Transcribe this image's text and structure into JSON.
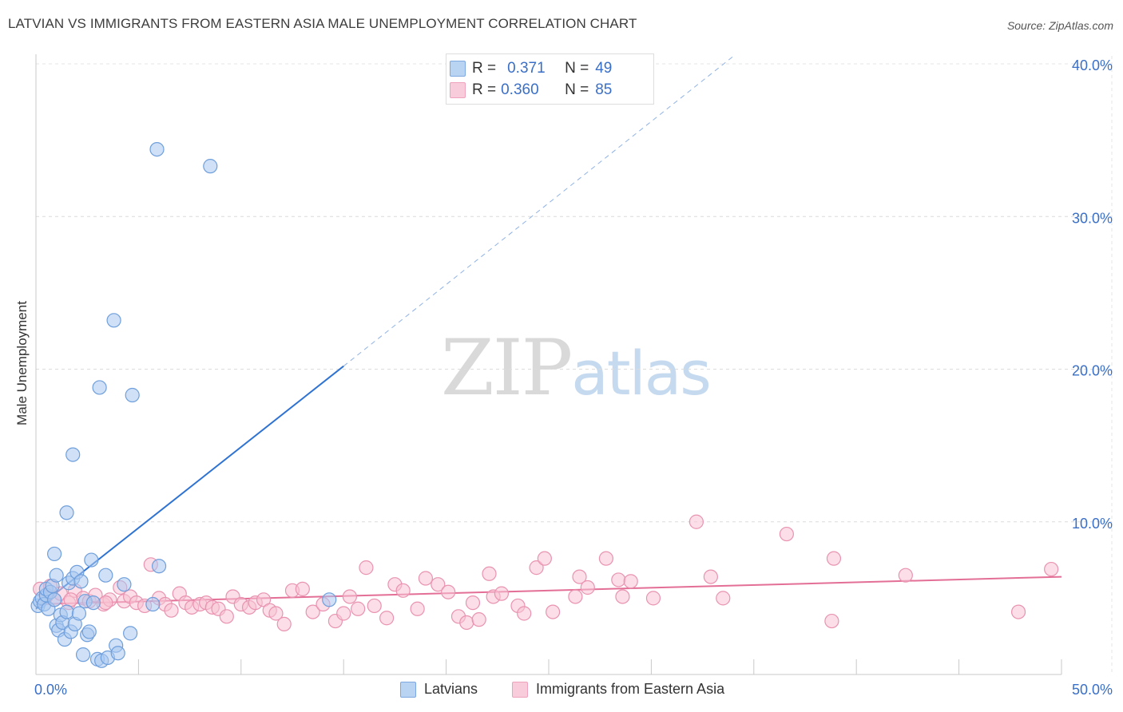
{
  "header": {
    "title": "LATVIAN VS IMMIGRANTS FROM EASTERN ASIA MALE UNEMPLOYMENT CORRELATION CHART",
    "source": "Source: ZipAtlas.com"
  },
  "watermark": {
    "zip": "ZIP",
    "atlas": "atlas"
  },
  "legend": {
    "latvians": {
      "r_label": "R =",
      "r_value": "0.371",
      "n_label": "N =",
      "n_value": "49"
    },
    "eastern_asia": {
      "r_label": "R =",
      "r_value": "0.360",
      "n_label": "N =",
      "n_value": "85"
    }
  },
  "bottom_legend": {
    "latvians": "Latvians",
    "eastern_asia": "Immigrants from Eastern Asia"
  },
  "colors": {
    "latvians_fill": "#a9c8f0",
    "latvians_stroke": "#6f9fdc",
    "latvians_line": "#2e72d2",
    "eastern_fill": "#f8c3d3",
    "eastern_stroke": "#e993b0",
    "eastern_line": "#e36f97",
    "tick_label": "#3a6fc7"
  },
  "chart_data": {
    "type": "scatter",
    "title": "LATVIAN VS IMMIGRANTS FROM EASTERN ASIA MALE UNEMPLOYMENT CORRELATION CHART",
    "xlabel": "",
    "ylabel": "Male Unemployment",
    "xlim": [
      0,
      50
    ],
    "ylim": [
      0,
      40
    ],
    "x_tick_labels": [
      {
        "value": 0,
        "label": "0.0%"
      },
      {
        "value": 50,
        "label": "50.0%"
      }
    ],
    "y_tick_labels": [
      {
        "value": 10,
        "label": "10.0%"
      },
      {
        "value": 20,
        "label": "20.0%"
      },
      {
        "value": 30,
        "label": "30.0%"
      },
      {
        "value": 40,
        "label": "40.0%"
      }
    ],
    "grid": true,
    "series": [
      {
        "name": "Latvians",
        "R": 0.371,
        "N": 49,
        "points": [
          [
            0.1,
            4.5
          ],
          [
            0.2,
            4.8
          ],
          [
            0.3,
            5.0
          ],
          [
            0.4,
            4.6
          ],
          [
            0.5,
            5.2
          ],
          [
            0.5,
            5.6
          ],
          [
            0.6,
            4.3
          ],
          [
            0.7,
            5.4
          ],
          [
            0.8,
            5.8
          ],
          [
            0.9,
            4.9
          ],
          [
            1.0,
            3.2
          ],
          [
            1.0,
            6.5
          ],
          [
            0.9,
            7.9
          ],
          [
            1.1,
            2.9
          ],
          [
            1.2,
            3.9
          ],
          [
            1.3,
            3.4
          ],
          [
            1.4,
            2.3
          ],
          [
            1.5,
            4.1
          ],
          [
            1.6,
            6.0
          ],
          [
            1.7,
            2.8
          ],
          [
            1.8,
            6.3
          ],
          [
            1.9,
            3.3
          ],
          [
            2.0,
            6.7
          ],
          [
            2.1,
            4.0
          ],
          [
            2.2,
            6.1
          ],
          [
            2.3,
            1.3
          ],
          [
            2.4,
            4.8
          ],
          [
            2.5,
            2.6
          ],
          [
            2.6,
            2.8
          ],
          [
            2.7,
            7.5
          ],
          [
            2.8,
            4.7
          ],
          [
            3.0,
            1.0
          ],
          [
            3.2,
            0.9
          ],
          [
            3.4,
            6.5
          ],
          [
            3.5,
            1.1
          ],
          [
            3.9,
            1.9
          ],
          [
            4.0,
            1.4
          ],
          [
            4.3,
            5.9
          ],
          [
            4.6,
            2.7
          ],
          [
            5.7,
            4.6
          ],
          [
            6.0,
            7.1
          ],
          [
            1.5,
            10.6
          ],
          [
            1.8,
            14.4
          ],
          [
            3.1,
            18.8
          ],
          [
            3.8,
            23.2
          ],
          [
            4.7,
            18.3
          ],
          [
            5.9,
            34.4
          ],
          [
            8.5,
            33.3
          ],
          [
            14.3,
            4.9
          ]
        ],
        "trend": {
          "x1": 0,
          "y1": 4.3,
          "x2": 15.0,
          "y2": 20.2,
          "dashed_to_x": 34.0,
          "dashed_to_y": 40.5
        }
      },
      {
        "name": "Immigrants from Eastern Asia",
        "R": 0.36,
        "N": 85,
        "points": [
          [
            0.2,
            5.6
          ],
          [
            0.5,
            5.1
          ],
          [
            0.7,
            5.8
          ],
          [
            0.9,
            4.9
          ],
          [
            1.2,
            5.3
          ],
          [
            1.6,
            4.7
          ],
          [
            1.9,
            5.5
          ],
          [
            2.3,
            5.0
          ],
          [
            2.6,
            4.8
          ],
          [
            2.9,
            5.2
          ],
          [
            3.3,
            4.6
          ],
          [
            3.6,
            4.9
          ],
          [
            4.1,
            5.7
          ],
          [
            4.3,
            4.8
          ],
          [
            4.6,
            5.1
          ],
          [
            4.9,
            4.7
          ],
          [
            5.3,
            4.5
          ],
          [
            5.6,
            7.2
          ],
          [
            6.0,
            5.0
          ],
          [
            6.3,
            4.6
          ],
          [
            6.6,
            4.2
          ],
          [
            7.0,
            5.3
          ],
          [
            7.3,
            4.7
          ],
          [
            7.6,
            4.4
          ],
          [
            8.0,
            4.6
          ],
          [
            8.3,
            4.7
          ],
          [
            8.6,
            4.4
          ],
          [
            8.9,
            4.3
          ],
          [
            9.3,
            3.8
          ],
          [
            9.6,
            5.1
          ],
          [
            10.0,
            4.6
          ],
          [
            10.4,
            4.4
          ],
          [
            10.7,
            4.7
          ],
          [
            11.1,
            4.9
          ],
          [
            11.4,
            4.2
          ],
          [
            11.7,
            4.0
          ],
          [
            12.1,
            3.3
          ],
          [
            12.5,
            5.5
          ],
          [
            13.0,
            5.6
          ],
          [
            13.5,
            4.1
          ],
          [
            14.0,
            4.6
          ],
          [
            14.6,
            3.5
          ],
          [
            15.0,
            4.0
          ],
          [
            15.3,
            5.1
          ],
          [
            15.7,
            4.3
          ],
          [
            16.1,
            7.0
          ],
          [
            16.5,
            4.5
          ],
          [
            17.1,
            3.7
          ],
          [
            17.5,
            5.9
          ],
          [
            17.9,
            5.5
          ],
          [
            18.6,
            4.3
          ],
          [
            19.0,
            6.3
          ],
          [
            19.6,
            5.9
          ],
          [
            20.1,
            5.4
          ],
          [
            20.6,
            3.8
          ],
          [
            21.0,
            3.4
          ],
          [
            21.3,
            4.7
          ],
          [
            21.6,
            3.6
          ],
          [
            22.1,
            6.6
          ],
          [
            22.3,
            5.1
          ],
          [
            22.7,
            5.3
          ],
          [
            23.5,
            4.5
          ],
          [
            23.8,
            4.0
          ],
          [
            24.4,
            7.0
          ],
          [
            24.8,
            7.6
          ],
          [
            25.2,
            4.1
          ],
          [
            26.3,
            5.1
          ],
          [
            26.5,
            6.4
          ],
          [
            26.9,
            5.7
          ],
          [
            27.8,
            7.6
          ],
          [
            28.4,
            6.2
          ],
          [
            28.6,
            5.1
          ],
          [
            29.0,
            6.1
          ],
          [
            30.1,
            5.0
          ],
          [
            32.2,
            10.0
          ],
          [
            32.9,
            6.4
          ],
          [
            33.5,
            5.0
          ],
          [
            36.6,
            9.2
          ],
          [
            38.8,
            3.5
          ],
          [
            38.9,
            7.6
          ],
          [
            42.4,
            6.5
          ],
          [
            47.9,
            4.1
          ],
          [
            49.5,
            6.9
          ],
          [
            1.7,
            4.9
          ],
          [
            3.4,
            4.7
          ]
        ],
        "trend": {
          "x1": 0,
          "y1": 4.6,
          "x2": 50,
          "y2": 6.4
        }
      }
    ]
  }
}
